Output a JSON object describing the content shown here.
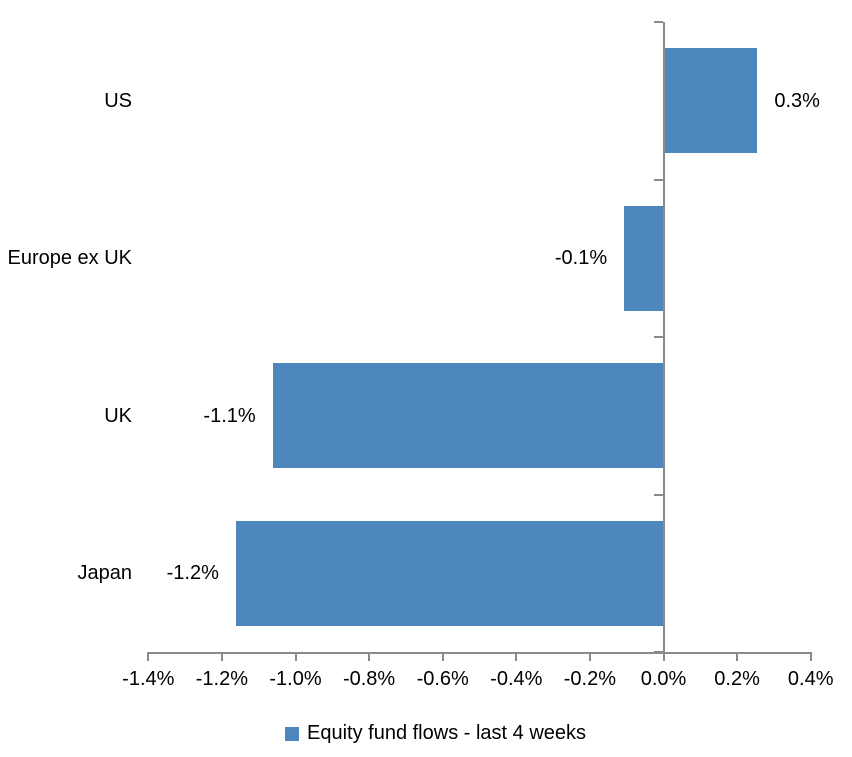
{
  "chart_data": {
    "type": "bar",
    "orientation": "horizontal",
    "title": "",
    "categories": [
      "US",
      "Europe ex UK",
      "UK",
      "Japan"
    ],
    "values": [
      0.3,
      -0.1,
      -1.1,
      -1.2
    ],
    "value_labels": [
      "0.3%",
      "-0.1%",
      "-1.1%",
      "-1.2%"
    ],
    "bar_render_pct": [
      0.255,
      -0.107,
      -1.062,
      -1.162
    ],
    "xlabel": "",
    "ylabel": "",
    "x_axis": {
      "min": -1.4,
      "max": 0.4,
      "tick_step": 0.2,
      "tick_labels": [
        "-1.4%",
        "-1.2%",
        "-1.0%",
        "-0.8%",
        "-0.6%",
        "-0.4%",
        "-0.2%",
        "0.0%",
        "0.2%",
        "0.4%"
      ]
    },
    "legend": {
      "position": "bottom",
      "label": "Equity fund flows - last 4 weeks"
    },
    "grid": false,
    "colors": {
      "bar": "#4e86be",
      "axis": "#8a8a8a",
      "text": "#000000",
      "background": "#ffffff"
    }
  }
}
